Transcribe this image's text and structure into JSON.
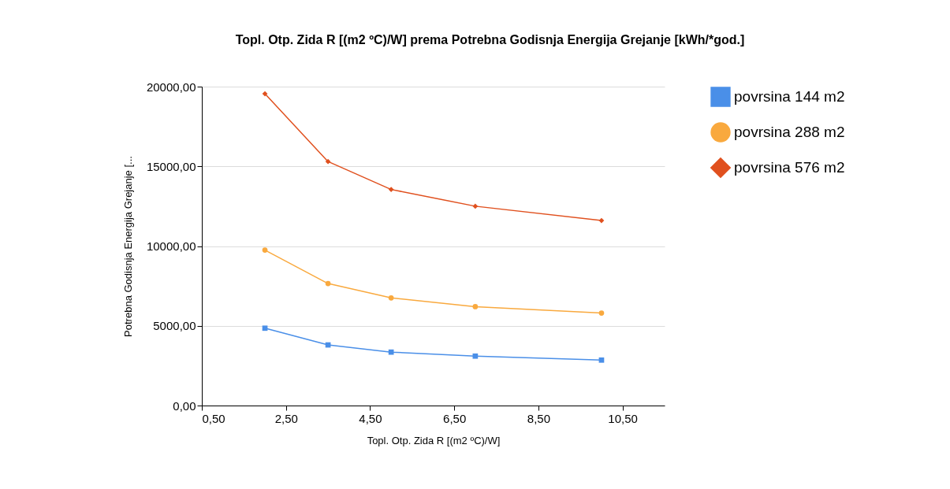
{
  "chart_data": {
    "type": "line",
    "title": "Topl. Otp. Zida R [(m2 ºC)/W] prema Potrebna Godisnja Energija Grejanje [kWh/*god.]",
    "xlabel": "Topl. Otp. Zida R [(m2 ºC)/W]",
    "ylabel": "Potrebna Godisnja Energija Grejanje [...",
    "x": [
      2,
      3.5,
      5,
      7,
      10
    ],
    "series": [
      {
        "name": "povrsina 144 m2",
        "color": "#4a8fe8",
        "marker": "square",
        "values": [
          4850,
          3800,
          3350,
          3100,
          2850
        ]
      },
      {
        "name": "povrsina 288 m2",
        "color": "#f9a93e",
        "marker": "circle",
        "values": [
          9750,
          7650,
          6750,
          6200,
          5800
        ]
      },
      {
        "name": "povrsina 576 m2",
        "color": "#e0501e",
        "marker": "diamond",
        "values": [
          19550,
          15300,
          13550,
          12500,
          11600
        ]
      }
    ],
    "xlim": [
      0.5,
      11.5
    ],
    "xticks": [
      {
        "value": 0.5,
        "label": "0,50"
      },
      {
        "value": 2.5,
        "label": "2,50"
      },
      {
        "value": 4.5,
        "label": "4,50"
      },
      {
        "value": 6.5,
        "label": "6,50"
      },
      {
        "value": 8.5,
        "label": "8,50"
      },
      {
        "value": 10.5,
        "label": "10,50"
      }
    ],
    "ylim": [
      0,
      20000
    ],
    "yticks": [
      {
        "value": 0,
        "label": "0,00"
      },
      {
        "value": 5000,
        "label": "5000,00"
      },
      {
        "value": 10000,
        "label": "10000,00"
      },
      {
        "value": 15000,
        "label": "15000,00"
      },
      {
        "value": 20000,
        "label": "20000,00"
      }
    ],
    "grid": "y",
    "legend": "top right",
    "line_style": "solid"
  }
}
